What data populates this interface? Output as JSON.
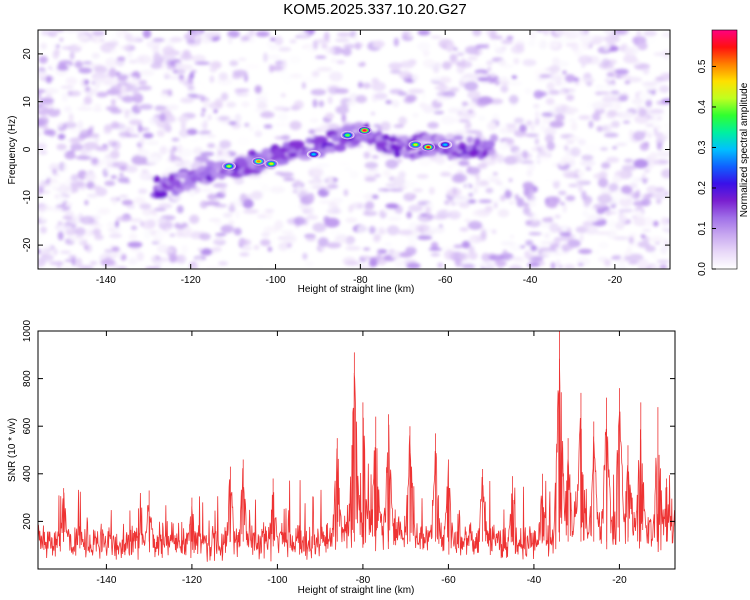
{
  "title": "KOM5.2025.337.10.20.G27",
  "colors": {
    "line": "#ee3333",
    "axis": "#000000",
    "background": "#ffffff"
  },
  "chart_data": [
    {
      "type": "heatmap",
      "name": "spectrogram",
      "xlabel": "Height of straight line (km)",
      "ylabel": "Frequency (Hz)",
      "xlim": [
        -156,
        -7
      ],
      "ylim": [
        -25,
        25
      ],
      "xticks": [
        -140,
        -120,
        -100,
        -80,
        -60,
        -40,
        -20
      ],
      "yticks": [
        -20,
        -10,
        0,
        10,
        20
      ],
      "colorbar": {
        "label": "Normalized spectral amplitude",
        "range": [
          0.0,
          0.59
        ],
        "ticks": [
          0.0,
          0.1,
          0.2,
          0.3,
          0.4,
          0.5
        ],
        "stops": [
          "#ffffff",
          "#e8d8f8",
          "#c8a8f0",
          "#a070e8",
          "#7a1fd0",
          "#3a10e8",
          "#1060ff",
          "#00c0ff",
          "#00f0a0",
          "#30ff30",
          "#c0ff20",
          "#ffe000",
          "#ff8000",
          "#ff1010",
          "#ff0080"
        ]
      },
      "ridge": [
        {
          "x": -127,
          "y": -8
        },
        {
          "x": -120,
          "y": -6
        },
        {
          "x": -113,
          "y": -4
        },
        {
          "x": -106,
          "y": -3
        },
        {
          "x": -100,
          "y": -1.5
        },
        {
          "x": -94,
          "y": -0.5
        },
        {
          "x": -88,
          "y": 1
        },
        {
          "x": -84,
          "y": 2.5
        },
        {
          "x": -80,
          "y": 3.5
        },
        {
          "x": -76,
          "y": 2
        },
        {
          "x": -72,
          "y": 0.5
        },
        {
          "x": -68,
          "y": 0.5
        },
        {
          "x": -64,
          "y": 1
        },
        {
          "x": -60,
          "y": 0.5
        },
        {
          "x": -56,
          "y": 0.5
        },
        {
          "x": -50,
          "y": 0
        }
      ],
      "hotspots": [
        {
          "x": -111,
          "y": -3.5,
          "value": 0.42
        },
        {
          "x": -104,
          "y": -2.5,
          "value": 0.5
        },
        {
          "x": -101,
          "y": -3,
          "value": 0.45
        },
        {
          "x": -91,
          "y": -1,
          "value": 0.3
        },
        {
          "x": -83,
          "y": 3,
          "value": 0.4
        },
        {
          "x": -79,
          "y": 4,
          "value": 0.58
        },
        {
          "x": -67,
          "y": 1,
          "value": 0.45
        },
        {
          "x": -64,
          "y": 0.5,
          "value": 0.55
        },
        {
          "x": -60,
          "y": 1,
          "value": 0.3
        }
      ]
    },
    {
      "type": "line",
      "name": "snr",
      "xlabel": "Height of straight line (km)",
      "ylabel": "SNR (10 * v/v)",
      "xlim": [
        -156,
        -7
      ],
      "ylim": [
        0,
        1000
      ],
      "xticks": [
        -140,
        -120,
        -100,
        -80,
        -60,
        -40,
        -20
      ],
      "yticks": [
        200,
        400,
        600,
        800,
        1000
      ],
      "peaks": [
        {
          "x": -150,
          "y": 340
        },
        {
          "x": -130,
          "y": 330
        },
        {
          "x": -120,
          "y": 300
        },
        {
          "x": -111,
          "y": 430
        },
        {
          "x": -108,
          "y": 460
        },
        {
          "x": -101,
          "y": 380
        },
        {
          "x": -86,
          "y": 550
        },
        {
          "x": -82,
          "y": 910
        },
        {
          "x": -80,
          "y": 700
        },
        {
          "x": -77,
          "y": 640
        },
        {
          "x": -74,
          "y": 650
        },
        {
          "x": -69,
          "y": 600
        },
        {
          "x": -63,
          "y": 570
        },
        {
          "x": -60,
          "y": 460
        },
        {
          "x": -52,
          "y": 420
        },
        {
          "x": -45,
          "y": 390
        },
        {
          "x": -38,
          "y": 400
        },
        {
          "x": -34,
          "y": 1000
        },
        {
          "x": -32,
          "y": 550
        },
        {
          "x": -29,
          "y": 740
        },
        {
          "x": -26,
          "y": 620
        },
        {
          "x": -23,
          "y": 720
        },
        {
          "x": -20,
          "y": 760
        },
        {
          "x": -18,
          "y": 520
        },
        {
          "x": -15,
          "y": 700
        },
        {
          "x": -11,
          "y": 680
        },
        {
          "x": -9,
          "y": 380
        }
      ],
      "baseline_mean": 115,
      "baseline_spread": 90
    }
  ]
}
